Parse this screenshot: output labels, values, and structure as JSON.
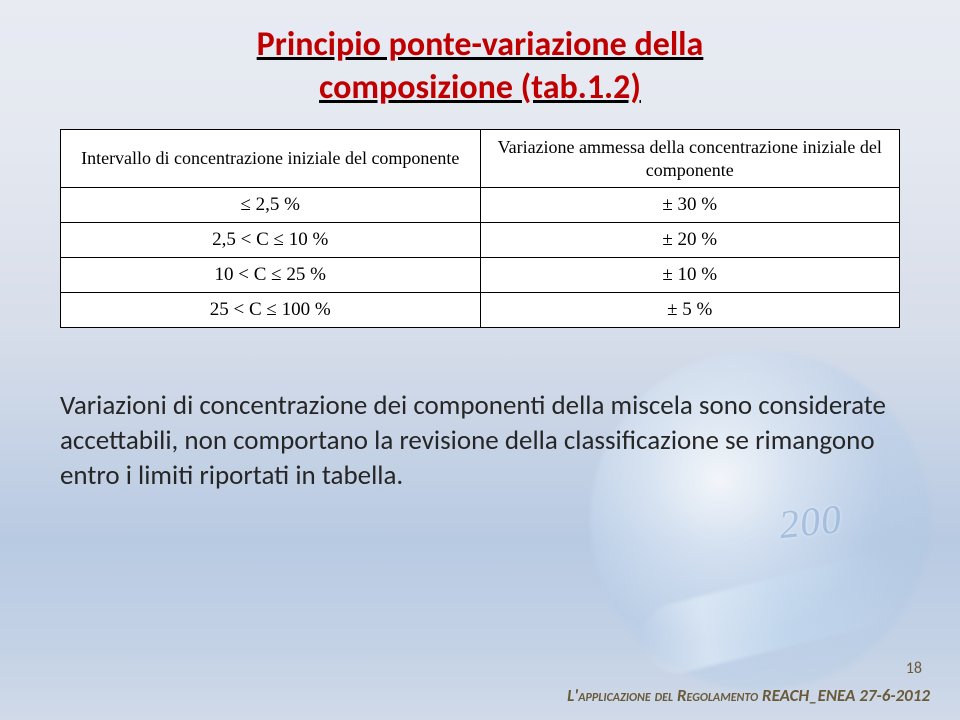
{
  "title": {
    "line1": "Principio ponte-variazione della",
    "line2": "composizione  (tab.1.2)",
    "color": "#c00000",
    "fontsize_pt": 26,
    "underline": true,
    "bold": true
  },
  "table": {
    "type": "table",
    "background_color": "#ffffff",
    "border_color": "#000000",
    "header_fontsize_pt": 14,
    "cell_fontsize_pt": 15,
    "font_family": "Times New Roman",
    "alignment": "center",
    "columns": [
      "Intervallo di concentrazione iniziale del componente",
      "Variazione ammessa della concentrazione iniziale del componente"
    ],
    "rows": [
      [
        "≤ 2,5 %",
        "± 30 %"
      ],
      [
        "2,5 < C ≤ 10 %",
        "± 20 %"
      ],
      [
        "10 < C ≤ 25 %",
        "± 10 %"
      ],
      [
        "25 < C ≤ 100 %",
        "± 5 %"
      ]
    ],
    "col_widths": [
      "50%",
      "50%"
    ]
  },
  "body_text": "Variazioni di concentrazione dei componenti della miscela sono considerate accettabili, non comportano la revisione della classificazione se rimangono entro i limiti riportati in tabella.",
  "body_text_fontsize_pt": 20,
  "body_text_color": "#262626",
  "page_number": "18",
  "page_number_color": "#6b5a3a",
  "footer": {
    "prefix": "L'",
    "smallcaps1": "applicazione del ",
    "word": "R",
    "smallcaps2": "egolamento",
    "tail": " REACH_ENEA  27-6-2012",
    "color": "#6b5a3a",
    "italic": true,
    "bold": true
  },
  "background": {
    "gradient_top": "#e8ebf2",
    "gradient_bottom": "#d0dae8",
    "decorative_number_text": "200",
    "decorative_number_color": "rgba(120,160,205,0.55)"
  }
}
